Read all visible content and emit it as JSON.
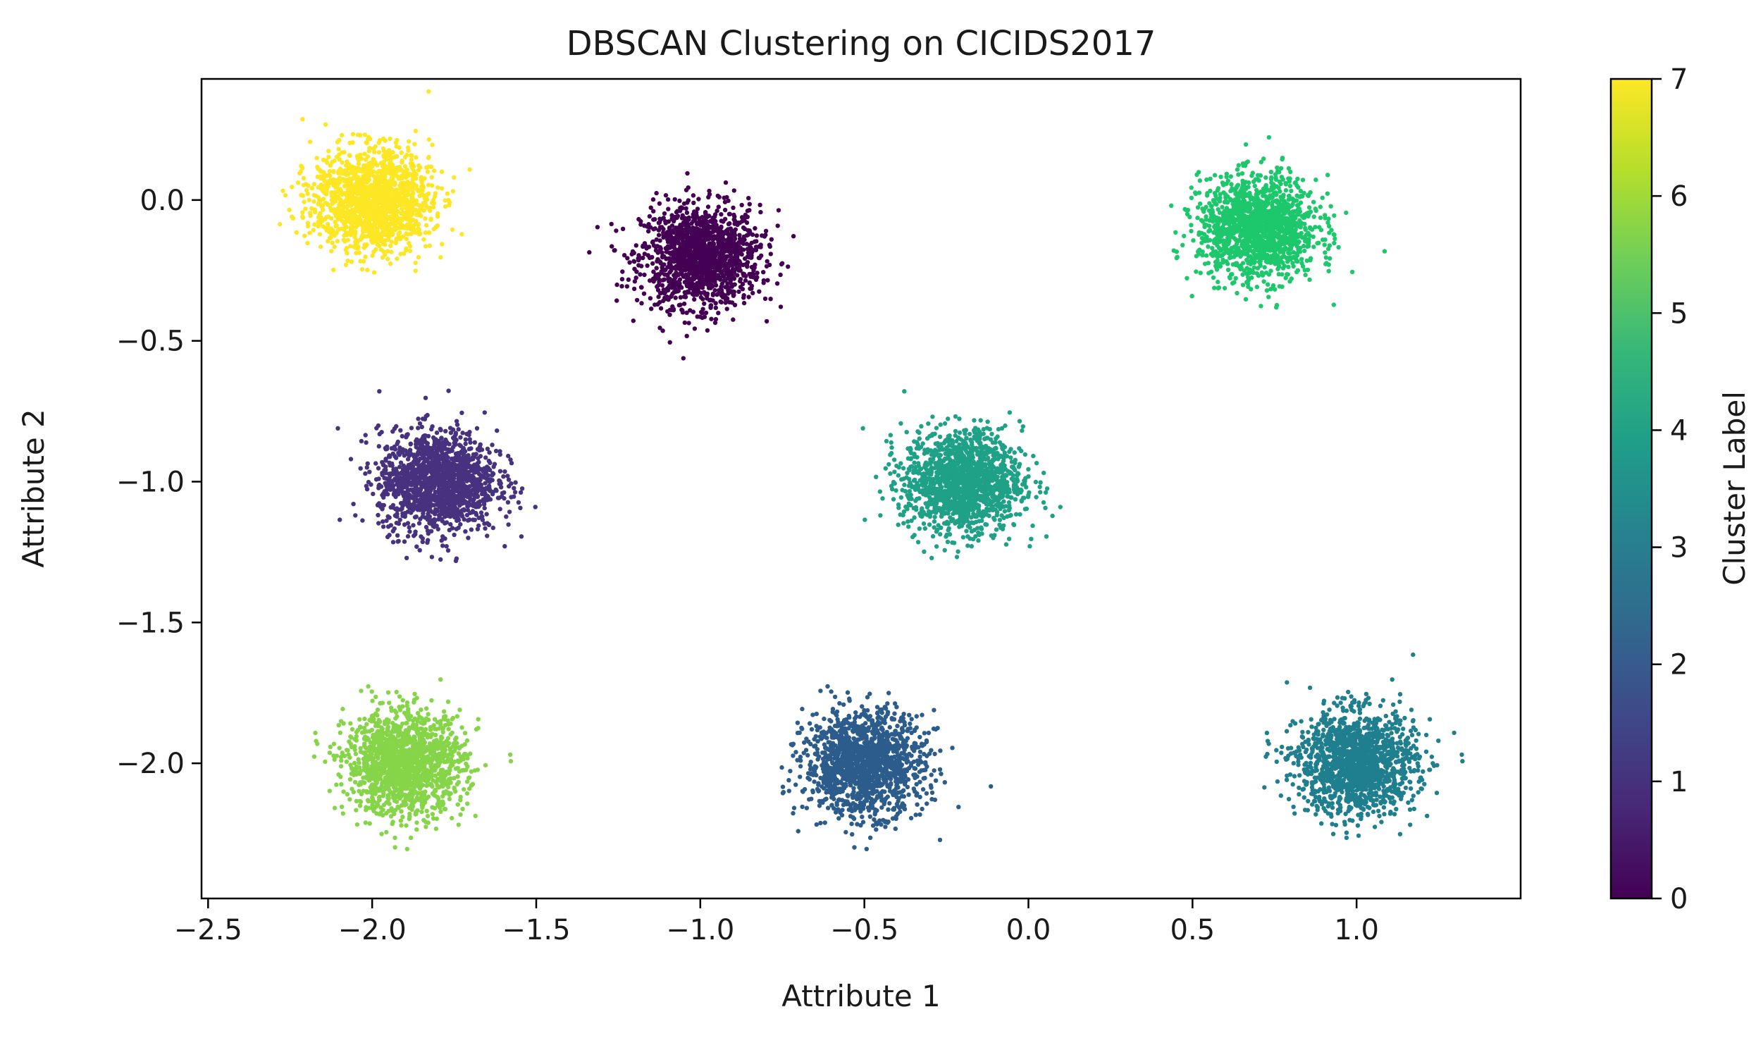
{
  "chart_data": {
    "type": "scatter",
    "title": "DBSCAN Clustering on CICIDS2017",
    "xlabel": "Attribute 1",
    "ylabel": "Attribute 2",
    "xlim": [
      -2.52,
      1.5
    ],
    "ylim": [
      -2.48,
      0.43
    ],
    "xticks": [
      -2.5,
      -2.0,
      -1.5,
      -1.0,
      -0.5,
      0.0,
      0.5,
      1.0
    ],
    "xtick_labels": [
      "−2.5",
      "−2.0",
      "−1.5",
      "−1.0",
      "−0.5",
      "0.0",
      "0.5",
      "1.0"
    ],
    "yticks": [
      0.0,
      -0.5,
      -1.0,
      -1.5,
      -2.0
    ],
    "ytick_labels": [
      "0.0",
      "−0.5",
      "−1.0",
      "−1.5",
      "−2.0"
    ],
    "grid": false,
    "clusters": [
      {
        "label": 0,
        "center": [
          -1.0,
          -0.2
        ],
        "spread": 0.09,
        "color": "#440154"
      },
      {
        "label": 1,
        "center": [
          -1.8,
          -1.0
        ],
        "spread": 0.09,
        "color": "#46327e"
      },
      {
        "label": 2,
        "center": [
          -0.5,
          -2.0
        ],
        "spread": 0.09,
        "color": "#2c5c8c"
      },
      {
        "label": 3,
        "center": [
          1.0,
          -2.0
        ],
        "spread": 0.09,
        "color": "#1f7f8e"
      },
      {
        "label": 4,
        "center": [
          -0.2,
          -1.0
        ],
        "spread": 0.09,
        "color": "#1fa187"
      },
      {
        "label": 5,
        "center": [
          0.7,
          -0.1
        ],
        "spread": 0.09,
        "color": "#1dc76b"
      },
      {
        "label": 6,
        "center": [
          -1.9,
          -2.0
        ],
        "spread": 0.09,
        "color": "#86d549"
      },
      {
        "label": 7,
        "center": [
          -2.0,
          0.0
        ],
        "spread": 0.09,
        "color": "#fde725"
      }
    ],
    "points_per_cluster": 1500,
    "colorbar": {
      "label": "Cluster Label",
      "min": 0,
      "max": 7,
      "ticks": [
        0,
        1,
        2,
        3,
        4,
        5,
        6,
        7
      ],
      "tick_labels": [
        "0",
        "1",
        "2",
        "3",
        "4",
        "5",
        "6",
        "7"
      ],
      "colormap": "viridis",
      "stops": [
        "#440154",
        "#482878",
        "#3e4989",
        "#31688e",
        "#26828e",
        "#1f9e89",
        "#35b779",
        "#6ece58",
        "#b5de2b",
        "#fde725"
      ]
    }
  }
}
